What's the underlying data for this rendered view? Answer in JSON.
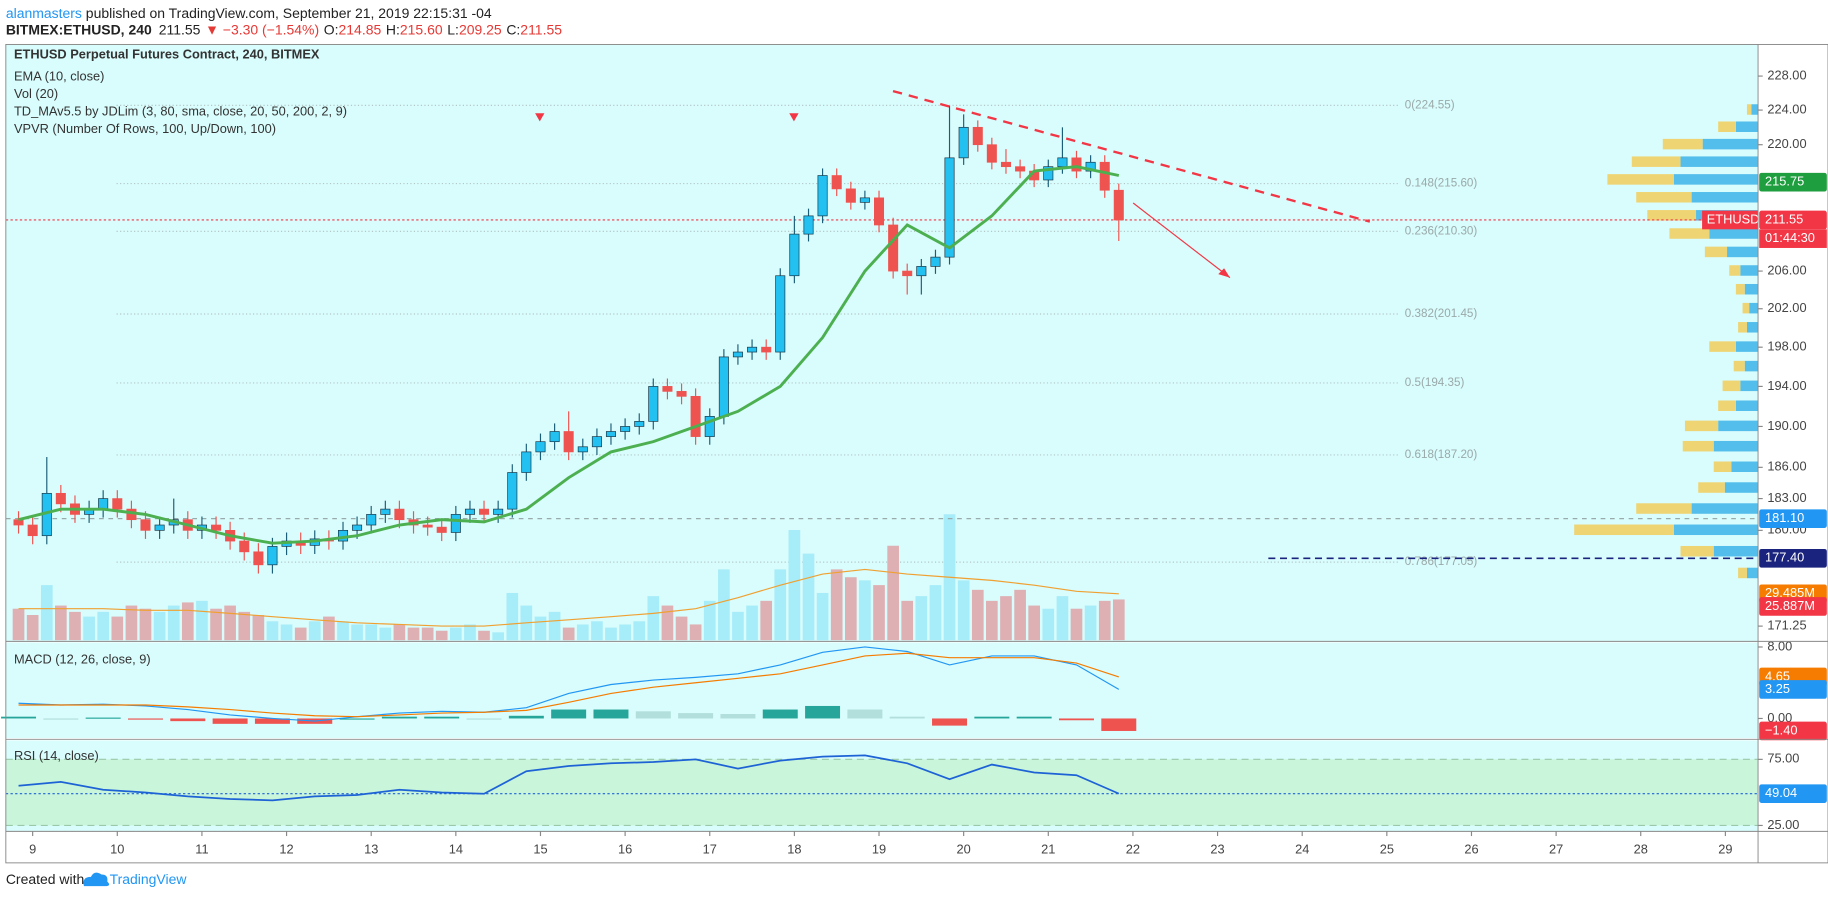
{
  "header": {
    "author": "alanmasters",
    "published": " published on TradingView.com, September 21, 2019 22:15:31 -04",
    "symbol": "BITMEX:ETHUSD, 240",
    "price": "211.55",
    "change": "▼ −3.30 (−1.54%)",
    "ohlc": [
      {
        "key": "O:",
        "value": "214.85"
      },
      {
        "key": "H:",
        "value": "215.60"
      },
      {
        "key": "L:",
        "value": "209.25"
      },
      {
        "key": "C:",
        "value": "211.55"
      }
    ]
  },
  "footer": {
    "created": "Created with",
    "brand": "TradingView"
  },
  "chart_data": [
    {
      "type": "candlestick",
      "title": "ETHUSD Perpetual Futures Contract, 240, BITMEX",
      "legend": [
        "EMA (10, close)",
        "Vol (20)",
        "TD_MAv5.5 by JDLim (3, 80, sma, close, 20, 50, 200, 2, 9)",
        "VPVR (Number Of Rows, 100, Up/Down, 100)"
      ],
      "log_scale": true,
      "grid": false,
      "xlim": [
        8.683,
        29.386
      ],
      "xticks": [
        9,
        10,
        11,
        12,
        13,
        14,
        15,
        16,
        17,
        18,
        19,
        20,
        21,
        22,
        23,
        24,
        25,
        26,
        27,
        28,
        29
      ],
      "ylim": [
        170,
        231.5
      ],
      "yticks": [
        {
          "value": 228,
          "label": "228.00"
        },
        {
          "value": 224,
          "label": "224.00"
        },
        {
          "value": 220,
          "label": "220.00"
        },
        {
          "value": 206,
          "label": "206.00"
        },
        {
          "value": 202,
          "label": "202.00"
        },
        {
          "value": 198,
          "label": "198.00"
        },
        {
          "value": 194,
          "label": "194.00"
        },
        {
          "value": 190,
          "label": "190.00"
        },
        {
          "value": 186,
          "label": "186.00"
        },
        {
          "value": 183,
          "label": "183.00"
        },
        {
          "value": 180,
          "label": "180.00"
        },
        {
          "value": 171.25,
          "label": "171.25"
        }
      ],
      "up_color": "#22c1f1",
      "down_color": "#ef5350",
      "x": [
        8.833,
        9,
        9.167,
        9.333,
        9.5,
        9.667,
        9.833,
        10,
        10.167,
        10.333,
        10.5,
        10.667,
        10.833,
        11,
        11.167,
        11.333,
        11.5,
        11.667,
        11.833,
        12,
        12.167,
        12.333,
        12.5,
        12.667,
        12.833,
        13,
        13.167,
        13.333,
        13.5,
        13.667,
        13.833,
        14,
        14.167,
        14.333,
        14.5,
        14.667,
        14.833,
        15,
        15.167,
        15.333,
        15.5,
        15.667,
        15.833,
        16,
        16.167,
        16.333,
        16.5,
        16.667,
        16.833,
        17,
        17.167,
        17.333,
        17.5,
        17.667,
        17.833,
        18,
        18.167,
        18.333,
        18.5,
        18.667,
        18.833,
        19,
        19.167,
        19.333,
        19.5,
        19.667,
        19.833,
        20,
        20.167,
        20.333,
        20.5,
        20.667,
        20.833,
        21,
        21.167,
        21.333,
        21.5,
        21.667,
        21.833
      ],
      "open": [
        181.0,
        180.5,
        179.5,
        183.5,
        182.5,
        181.5,
        182.0,
        183.0,
        182.0,
        181.0,
        180.0,
        180.5,
        181.0,
        180.0,
        180.5,
        180.0,
        179.0,
        178.0,
        176.8,
        178.5,
        179.0,
        178.6,
        179.2,
        179.0,
        180.0,
        180.5,
        181.5,
        182.0,
        181.0,
        180.5,
        180.3,
        179.8,
        181.5,
        182.0,
        181.5,
        182.0,
        185.5,
        187.5,
        188.5,
        189.5,
        187.5,
        188.0,
        189.0,
        189.5,
        190.0,
        190.5,
        194.0,
        193.5,
        193.0,
        189.0,
        191.0,
        197.0,
        197.5,
        198.0,
        197.5,
        205.5,
        210.0,
        212.0,
        216.5,
        215.0,
        213.5,
        214.0,
        211.0,
        206.0,
        205.5,
        206.5,
        207.5,
        218.5,
        222.0,
        220.0,
        218.0,
        217.5,
        217.0,
        216.0,
        217.5,
        218.5,
        217.0,
        218.0,
        214.85
      ],
      "high": [
        181.8,
        181.3,
        187.0,
        184.3,
        183.3,
        182.8,
        183.8,
        183.8,
        182.8,
        181.8,
        181.3,
        183.0,
        181.8,
        181.3,
        181.3,
        180.8,
        179.8,
        178.8,
        179.3,
        179.8,
        179.8,
        180.0,
        180.0,
        180.8,
        181.3,
        182.3,
        182.8,
        182.8,
        181.8,
        181.3,
        181.1,
        182.3,
        182.8,
        182.8,
        182.8,
        186.3,
        188.3,
        189.3,
        190.3,
        191.5,
        188.8,
        189.8,
        190.3,
        190.8,
        191.3,
        194.8,
        194.8,
        194.3,
        193.8,
        191.8,
        197.8,
        198.3,
        198.8,
        198.8,
        206.3,
        212.0,
        212.8,
        217.3,
        217.3,
        215.8,
        214.8,
        214.8,
        211.8,
        206.8,
        207.3,
        208.3,
        224.5,
        223.5,
        222.8,
        220.8,
        219.5,
        218.3,
        217.8,
        218.3,
        222.0,
        219.3,
        218.8,
        218.8,
        215.6
      ],
      "low": [
        179.7,
        178.7,
        178.7,
        181.7,
        180.7,
        180.7,
        181.2,
        181.2,
        180.2,
        179.2,
        179.2,
        179.7,
        179.2,
        179.2,
        179.2,
        178.2,
        177.2,
        176.0,
        176.0,
        177.7,
        177.8,
        177.8,
        178.2,
        178.2,
        179.2,
        179.7,
        180.7,
        180.2,
        179.7,
        179.5,
        179.0,
        179.0,
        180.7,
        180.7,
        180.7,
        181.2,
        184.7,
        186.7,
        187.7,
        186.7,
        186.7,
        187.2,
        188.2,
        188.7,
        189.2,
        189.7,
        192.7,
        192.2,
        188.2,
        188.2,
        190.2,
        196.2,
        196.7,
        196.7,
        196.7,
        204.7,
        209.2,
        211.2,
        214.2,
        212.7,
        212.7,
        210.2,
        205.2,
        203.5,
        203.5,
        205.7,
        206.7,
        217.7,
        219.2,
        217.2,
        216.7,
        216.2,
        215.2,
        215.2,
        216.7,
        216.2,
        216.2,
        214.0,
        209.25
      ],
      "close": [
        180.5,
        179.5,
        183.5,
        182.5,
        181.5,
        182.0,
        183.0,
        182.0,
        181.0,
        180.0,
        180.5,
        181.0,
        180.0,
        180.5,
        180.0,
        179.0,
        178.0,
        176.8,
        178.5,
        179.0,
        178.6,
        179.2,
        179.0,
        180.0,
        180.5,
        181.5,
        182.0,
        181.0,
        180.5,
        180.3,
        179.8,
        181.5,
        182.0,
        181.5,
        182.0,
        185.5,
        187.5,
        188.5,
        189.5,
        187.5,
        188.0,
        189.0,
        189.5,
        190.0,
        190.5,
        194.0,
        193.5,
        193.0,
        189.0,
        191.0,
        197.0,
        197.5,
        198.0,
        197.5,
        205.5,
        210.0,
        212.0,
        216.5,
        215.0,
        213.5,
        214.0,
        211.0,
        206.0,
        205.5,
        206.5,
        207.5,
        218.5,
        222.0,
        220.0,
        218.0,
        217.5,
        217.0,
        216.0,
        217.5,
        218.5,
        217.0,
        218.0,
        214.85,
        211.55
      ],
      "vlim": [
        0,
        100
      ],
      "volume_colors": [
        "#a7ecf9",
        "#deb0b3"
      ],
      "volume": [
        20,
        16,
        35,
        22,
        18,
        15,
        18,
        15,
        22,
        20,
        18,
        22,
        24,
        25,
        20,
        22,
        18,
        16,
        12,
        10,
        8,
        12,
        15,
        12,
        10,
        10,
        8,
        10,
        8,
        8,
        6,
        8,
        10,
        6,
        5,
        30,
        22,
        15,
        18,
        8,
        10,
        12,
        8,
        10,
        12,
        28,
        22,
        15,
        10,
        25,
        45,
        18,
        22,
        25,
        45,
        70,
        55,
        30,
        45,
        40,
        38,
        35,
        60,
        25,
        28,
        35,
        80,
        38,
        32,
        25,
        28,
        32,
        22,
        20,
        28,
        20,
        22,
        25,
        25.887
      ],
      "ema": {
        "color": "#4caf50",
        "x": [
          8.833,
          9.333,
          9.833,
          10.333,
          10.833,
          11.333,
          11.833,
          12.333,
          12.833,
          13.333,
          13.833,
          14.333,
          14.833,
          15.333,
          15.833,
          16.333,
          16.833,
          17.333,
          17.833,
          18.333,
          18.833,
          19.333,
          19.833,
          20.333,
          20.833,
          21.333,
          21.833
        ],
        "values": [
          181,
          182,
          182,
          181.5,
          180.5,
          179.5,
          178.8,
          179,
          179.5,
          180.5,
          181,
          180.8,
          182,
          185,
          187.5,
          188.5,
          190,
          191.5,
          194,
          199,
          206,
          211,
          208.5,
          212,
          217,
          217.5,
          216.5
        ]
      },
      "volume_ma": {
        "color": "#f0a030",
        "x": [
          8.833,
          9.333,
          9.833,
          10.333,
          10.833,
          11.333,
          11.833,
          12.333,
          12.833,
          13.333,
          13.833,
          14.333,
          14.833,
          15.333,
          15.833,
          16.333,
          16.833,
          17.333,
          17.833,
          18.333,
          18.833,
          19.333,
          19.833,
          20.333,
          20.833,
          21.333,
          21.833
        ],
        "values": [
          20,
          20,
          20,
          19,
          19,
          17,
          15,
          13,
          11,
          10,
          9,
          9,
          11,
          13,
          15,
          17,
          20,
          27,
          35,
          42,
          45,
          42,
          40,
          38,
          35,
          31,
          29.485
        ]
      },
      "fib": [
        {
          "value": 224.55,
          "label": "0(224.55)"
        },
        {
          "value": 215.6,
          "label": "0.148(215.60)"
        },
        {
          "value": 210.3,
          "label": "0.236(210.30)"
        },
        {
          "value": 201.45,
          "label": "0.382(201.45)"
        },
        {
          "value": 194.35,
          "label": "0.5(194.35)"
        },
        {
          "value": 187.2,
          "label": "0.618(187.20)"
        },
        {
          "value": 177.05,
          "label": "0.786(177.05)"
        }
      ],
      "hlines": [
        {
          "value": 211.55,
          "color": "#f23645",
          "dash": "2,2"
        },
        {
          "value": 181.1,
          "color": "#9aa",
          "dash": "4,4"
        },
        {
          "value": 177.4,
          "color": "#1a237e",
          "dash": "6,4",
          "from": 23.6
        }
      ],
      "price_tags": [
        {
          "value": 215.75,
          "label": "215.75",
          "color": "#1e9e3e"
        },
        {
          "value": 211.55,
          "label": "211.55",
          "name": "ETHUSD",
          "countdown": "01:44:30",
          "color": "#f23645"
        },
        {
          "value": 181.1,
          "label": "181.10",
          "color": "#2196f3"
        },
        {
          "value": 177.4,
          "label": "177.40",
          "color": "#1a237e"
        }
      ],
      "volume_tags": [
        {
          "value": 29.485,
          "label": "29.485M",
          "color": "#f57c00"
        },
        {
          "value": 25.887,
          "label": "25.887M",
          "color": "#f23645"
        }
      ],
      "vpvr": {
        "lim": [
          0,
          100
        ],
        "up_color": "#3bb3e8",
        "down_color": "#f2cc5a",
        "prices": [
          224,
          222,
          220,
          218,
          216,
          214,
          212,
          210,
          208,
          206,
          204,
          202,
          200,
          198,
          196,
          194,
          192,
          190,
          188,
          186,
          184,
          182,
          180,
          178,
          176
        ],
        "up": [
          3,
          10,
          25,
          35,
          38,
          30,
          28,
          22,
          14,
          8,
          6,
          4,
          5,
          10,
          6,
          8,
          10,
          18,
          20,
          12,
          15,
          30,
          38,
          20,
          5
        ],
        "down": [
          2,
          8,
          18,
          22,
          30,
          25,
          22,
          18,
          10,
          5,
          4,
          3,
          4,
          12,
          5,
          8,
          8,
          15,
          14,
          8,
          12,
          25,
          45,
          15,
          4
        ]
      }
    },
    {
      "type": "macd",
      "title": "MACD (12, 26, close, 9)",
      "ylim": [
        -2.2,
        8.5
      ],
      "yticks": [
        {
          "value": 8,
          "label": "8.00"
        },
        {
          "value": 0,
          "label": "0.00"
        }
      ],
      "x": [
        8.833,
        9.333,
        9.833,
        10.333,
        10.833,
        11.333,
        11.833,
        12.333,
        12.833,
        13.333,
        13.833,
        14.333,
        14.833,
        15.333,
        15.833,
        16.333,
        16.833,
        17.333,
        17.833,
        18.333,
        18.833,
        19.333,
        19.833,
        20.333,
        20.833,
        21.333,
        21.833
      ],
      "series": [
        {
          "color": "#2196f3",
          "values": [
            1.7,
            1.5,
            1.6,
            1.4,
            1.0,
            0.4,
            0.0,
            -0.3,
            0.2,
            0.6,
            0.8,
            0.7,
            1.2,
            2.8,
            3.8,
            4.3,
            4.6,
            5.0,
            6.0,
            7.4,
            8.0,
            7.5,
            6.0,
            7.0,
            7.0,
            6.0,
            3.25
          ]
        },
        {
          "color": "#f57c00",
          "values": [
            1.5,
            1.5,
            1.5,
            1.5,
            1.3,
            1.0,
            0.6,
            0.3,
            0.2,
            0.4,
            0.6,
            0.7,
            0.9,
            1.8,
            2.8,
            3.5,
            4.0,
            4.5,
            5.0,
            6.0,
            7.0,
            7.3,
            6.8,
            6.8,
            6.8,
            6.2,
            4.65
          ]
        }
      ],
      "histogram": {
        "colors": [
          "#26a69a",
          "#b2dfdb",
          "#ef5350",
          "#ffcdd2"
        ],
        "values": [
          0.2,
          0,
          0.1,
          -0.1,
          -0.3,
          -0.6,
          -0.6,
          -0.6,
          0,
          0.2,
          0.2,
          0,
          0.3,
          1.0,
          1.0,
          0.8,
          0.6,
          0.5,
          1.0,
          1.4,
          1.0,
          0.2,
          -0.8,
          0.2,
          0.2,
          -0.2,
          -1.4
        ]
      },
      "tags": [
        {
          "value": 4.65,
          "label": "4.65",
          "color": "#f57c00"
        },
        {
          "value": 3.25,
          "label": "3.25",
          "color": "#2196f3"
        },
        {
          "value": -1.4,
          "label": "−1.40",
          "color": "#f23645"
        }
      ]
    },
    {
      "type": "line",
      "title": "RSI (14, close)",
      "ylim": [
        20.5,
        89.3
      ],
      "yticks": [
        {
          "value": 75,
          "label": "75.00"
        },
        {
          "value": 25,
          "label": "25.00"
        }
      ],
      "band": [
        25,
        75
      ],
      "band_color": "#c9f5da",
      "x": [
        8.833,
        9.333,
        9.833,
        10.333,
        10.833,
        11.333,
        11.833,
        12.333,
        12.833,
        13.333,
        13.833,
        14.333,
        14.833,
        15.333,
        15.833,
        16.333,
        16.833,
        17.333,
        17.833,
        18.333,
        18.833,
        19.333,
        19.833,
        20.333,
        20.833,
        21.333,
        21.833
      ],
      "color": "#1e63d6",
      "values": [
        55,
        58,
        52,
        50,
        47,
        45,
        44,
        47,
        48,
        52,
        50,
        49,
        66,
        70,
        72,
        73,
        75,
        68,
        74,
        77,
        78,
        72,
        60,
        71,
        65,
        63,
        49.04
      ],
      "tags": [
        {
          "value": 49.04,
          "label": "49.04",
          "color": "#2196f3"
        }
      ]
    }
  ]
}
